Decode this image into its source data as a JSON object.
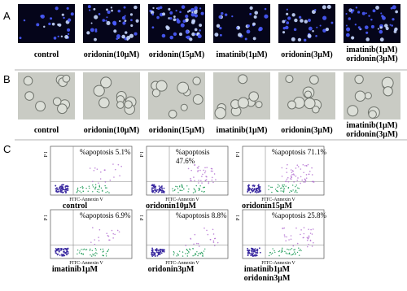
{
  "panel_a": {
    "label": "A",
    "captions": [
      [
        "control"
      ],
      [
        "oridonin(10μM)"
      ],
      [
        "oridonin(15μM)"
      ],
      [
        "imatinib(1μM)"
      ],
      [
        "oridonin(3μM)"
      ],
      [
        "imatinib(1μM)",
        "oridonin(3μM)"
      ]
    ]
  },
  "panel_b": {
    "label": "B",
    "captions": [
      [
        "control"
      ],
      [
        "oridonin(10μM)"
      ],
      [
        "oridonin(15μM)"
      ],
      [
        "imatinib(1μM)"
      ],
      [
        "oridonin(3μM)"
      ],
      [
        "imatinib(1μM)",
        "oridonin(3μM)"
      ]
    ]
  },
  "panel_c": {
    "label": "C",
    "plots": [
      {
        "annotation": [
          "%apoptosis  5.1%"
        ],
        "x_axis": "FITC-Annexin V",
        "y_axis": "P I",
        "caption": [
          "control"
        ]
      },
      {
        "annotation": [
          "%apoptosis",
          "47.6%"
        ],
        "x_axis": "FITC-Annexin V",
        "y_axis": "P I",
        "caption": [
          "oridonin10μM"
        ]
      },
      {
        "annotation": [
          "%apoptosis  71.1%"
        ],
        "x_axis": "FITC-Annexin V",
        "y_axis": "P I",
        "caption": [
          "oridonin15μM"
        ]
      },
      {
        "annotation": [
          "%apoptosis  6.9%"
        ],
        "x_axis": "FITC-Annexin V",
        "y_axis": "P I",
        "caption": [
          "imatinib1μM"
        ]
      },
      {
        "annotation": [
          "%apoptosis  8.8%"
        ],
        "x_axis": "FITC-Annexin V",
        "y_axis": "P I",
        "caption": [
          "oridonin3μM"
        ]
      },
      {
        "annotation": [
          "%apoptosis  25.8%"
        ],
        "x_axis": "FITC-Annexin V",
        "y_axis": "P I",
        "caption": [
          "imatinib1μM",
          "oridonin3μM"
        ]
      }
    ]
  }
}
